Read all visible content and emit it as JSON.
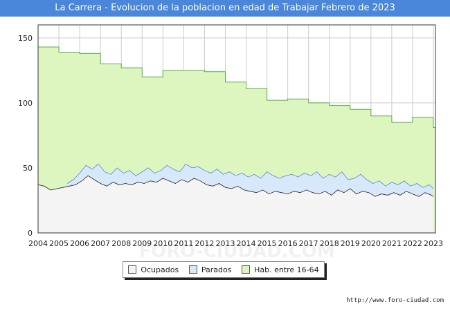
{
  "title": "La Carrera - Evolucion de la poblacion en edad de Trabajar Febrero de 2023",
  "source": "http://www.foro-ciudad.com",
  "watermark": "FORO-CIUDAD.COM",
  "colors": {
    "title_bg": "#4a86d9",
    "hab_fill": "#ddf6c0",
    "hab_line": "#5aa84a",
    "parados_fill": "#d8e8fb",
    "parados_line": "#5588cc",
    "ocupados_fill": "#f4f4f4",
    "ocupados_line": "#222222",
    "grid": "#cccccc"
  },
  "legend": [
    {
      "label": "Ocupados",
      "color": "#f4f4f4"
    },
    {
      "label": "Parados",
      "color": "#d8e8fb"
    },
    {
      "label": "Hab. entre 16-64",
      "color": "#ddf6c0"
    }
  ],
  "chart_data": {
    "type": "area",
    "xlim": [
      2004,
      2023.1
    ],
    "ylim": [
      0,
      160
    ],
    "yticks": [
      0,
      50,
      100,
      150
    ],
    "xticks": [
      2004,
      2005,
      2006,
      2007,
      2008,
      2009,
      2010,
      2011,
      2012,
      2013,
      2014,
      2015,
      2016,
      2017,
      2018,
      2019,
      2020,
      2021,
      2022,
      2023
    ],
    "grid": true,
    "legend_position": "bottom",
    "series": [
      {
        "name": "Hab. entre 16-64",
        "shape": "step",
        "x": [
          2004,
          2005,
          2006,
          2007,
          2008,
          2009,
          2010,
          2011,
          2012,
          2013,
          2014,
          2015,
          2016,
          2017,
          2018,
          2019,
          2020,
          2021,
          2022,
          2023
        ],
        "values": [
          143,
          139,
          138,
          130,
          127,
          120,
          125,
          125,
          124,
          116,
          111,
          102,
          103,
          100,
          98,
          95,
          90,
          85,
          89,
          81
        ]
      },
      {
        "name": "Parados",
        "x": [
          2005.4,
          2005.7,
          2006.0,
          2006.3,
          2006.6,
          2006.9,
          2007.2,
          2007.5,
          2007.8,
          2008.1,
          2008.4,
          2008.7,
          2009.0,
          2009.3,
          2009.6,
          2009.9,
          2010.2,
          2010.5,
          2010.8,
          2011.1,
          2011.4,
          2011.7,
          2012.0,
          2012.3,
          2012.6,
          2012.9,
          2013.2,
          2013.5,
          2013.8,
          2014.1,
          2014.4,
          2014.7,
          2015.0,
          2015.3,
          2015.6,
          2015.9,
          2016.2,
          2016.5,
          2016.8,
          2017.1,
          2017.4,
          2017.7,
          2018.0,
          2018.3,
          2018.6,
          2018.9,
          2019.2,
          2019.5,
          2019.8,
          2020.1,
          2020.4,
          2020.7,
          2021.0,
          2021.3,
          2021.6,
          2021.9,
          2022.2,
          2022.5,
          2022.8,
          2023.0
        ],
        "values": [
          38,
          41,
          46,
          52,
          49,
          53,
          47,
          45,
          50,
          46,
          48,
          44,
          47,
          50,
          46,
          48,
          52,
          49,
          47,
          53,
          50,
          51,
          48,
          46,
          49,
          45,
          47,
          44,
          46,
          43,
          45,
          42,
          47,
          44,
          42,
          44,
          45,
          43,
          46,
          44,
          47,
          42,
          45,
          43,
          47,
          41,
          42,
          45,
          41,
          38,
          40,
          36,
          39,
          37,
          40,
          36,
          38,
          35,
          37,
          34
        ]
      },
      {
        "name": "Ocupados",
        "x": [
          2004.0,
          2004.3,
          2004.6,
          2004.9,
          2005.2,
          2005.5,
          2005.8,
          2006.1,
          2006.4,
          2006.7,
          2007.0,
          2007.3,
          2007.6,
          2007.9,
          2008.2,
          2008.5,
          2008.8,
          2009.1,
          2009.4,
          2009.7,
          2010.0,
          2010.3,
          2010.6,
          2010.9,
          2011.2,
          2011.5,
          2011.8,
          2012.1,
          2012.4,
          2012.7,
          2013.0,
          2013.3,
          2013.6,
          2013.9,
          2014.2,
          2014.5,
          2014.8,
          2015.1,
          2015.4,
          2015.7,
          2016.0,
          2016.3,
          2016.6,
          2016.9,
          2017.2,
          2017.5,
          2017.8,
          2018.1,
          2018.4,
          2018.7,
          2019.0,
          2019.3,
          2019.6,
          2019.9,
          2020.2,
          2020.5,
          2020.8,
          2021.1,
          2021.4,
          2021.7,
          2022.0,
          2022.3,
          2022.6,
          2022.9,
          2023.0
        ],
        "values": [
          37,
          36,
          33,
          34,
          35,
          36,
          37,
          40,
          44,
          41,
          38,
          36,
          39,
          37,
          38,
          37,
          39,
          38,
          40,
          39,
          42,
          40,
          38,
          41,
          39,
          42,
          40,
          37,
          36,
          38,
          35,
          34,
          36,
          33,
          32,
          31,
          33,
          30,
          32,
          31,
          30,
          32,
          31,
          33,
          31,
          30,
          32,
          29,
          33,
          31,
          34,
          30,
          32,
          31,
          28,
          30,
          29,
          31,
          29,
          32,
          30,
          28,
          31,
          29,
          28
        ]
      }
    ]
  }
}
